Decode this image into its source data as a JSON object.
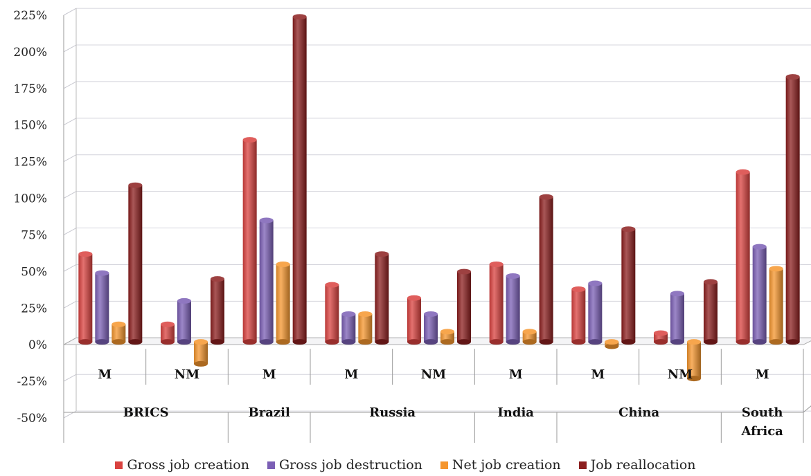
{
  "colors": {
    "gross_job_creation": "#d9423f",
    "gross_job_destruction": "#7b5fb5",
    "net_job_creation": "#f5962e",
    "job_reallocation": "#8c1f1f"
  },
  "chart_data": {
    "type": "bar",
    "style": "3d-cylinder",
    "title": "",
    "xlabel": "",
    "ylabel": "",
    "ylim": [
      -50,
      225
    ],
    "yticks": [
      "-50%",
      "-25%",
      "0%",
      "25%",
      "50%",
      "75%",
      "100%",
      "125%",
      "150%",
      "175%",
      "200%",
      "225%"
    ],
    "grid": true,
    "legend_position": "bottom",
    "categories": [
      "M",
      "NM",
      "M",
      "M",
      "NM",
      "M",
      "M",
      "NM",
      "M"
    ],
    "groups": [
      {
        "label": "BRICS",
        "span": 2
      },
      {
        "label": "Brazil",
        "span": 1
      },
      {
        "label": "Russia",
        "span": 2
      },
      {
        "label": "India",
        "span": 1
      },
      {
        "label": "China",
        "span": 2
      },
      {
        "label": "South Africa",
        "span": 1
      }
    ],
    "series": [
      {
        "name": "Gross job creation",
        "values": [
          60,
          12,
          138,
          39,
          30,
          53,
          36,
          6,
          116
        ]
      },
      {
        "name": "Gross job destruction",
        "values": [
          47,
          28,
          83,
          19,
          19,
          45,
          40,
          33,
          65
        ]
      },
      {
        "name": "Net job creation",
        "values": [
          12,
          -15,
          53,
          19,
          7,
          7,
          -3,
          -25,
          50
        ]
      },
      {
        "name": "Job reallocation",
        "values": [
          107,
          43,
          222,
          60,
          48,
          99,
          77,
          41,
          181
        ]
      }
    ]
  }
}
